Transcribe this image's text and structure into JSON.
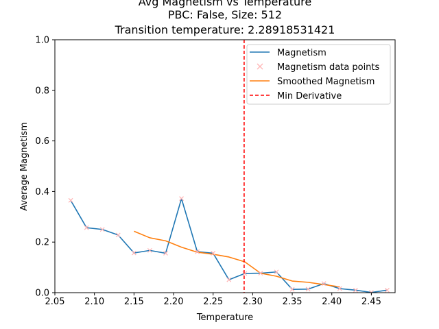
{
  "chart_data": {
    "type": "line",
    "title_lines": [
      "Avg Magnetism vs Temperature",
      "PBC: False, Size: 512",
      "Transition temperature: 2.28918531421"
    ],
    "xlabel": "Temperature",
    "ylabel": "Average Magnetism",
    "xlim": [
      2.05,
      2.48
    ],
    "ylim": [
      0.0,
      1.0
    ],
    "xticks": [
      2.05,
      2.1,
      2.15,
      2.2,
      2.25,
      2.3,
      2.35,
      2.4,
      2.45
    ],
    "xtick_labels": [
      "2.05",
      "2.10",
      "2.15",
      "2.20",
      "2.25",
      "2.30",
      "2.35",
      "2.40",
      "2.45"
    ],
    "yticks": [
      0.0,
      0.2,
      0.4,
      0.6,
      0.8,
      1.0
    ],
    "ytick_labels": [
      "0.0",
      "0.2",
      "0.4",
      "0.6",
      "0.8",
      "1.0"
    ],
    "series": [
      {
        "name": "Magnetism",
        "kind": "line",
        "color": "#1f77b4",
        "x": [
          2.07,
          2.09,
          2.11,
          2.13,
          2.15,
          2.17,
          2.19,
          2.21,
          2.23,
          2.25,
          2.27,
          2.29,
          2.31,
          2.33,
          2.35,
          2.37,
          2.39,
          2.41,
          2.43,
          2.45,
          2.47
        ],
        "y": [
          0.365,
          0.257,
          0.25,
          0.228,
          0.157,
          0.167,
          0.156,
          0.372,
          0.162,
          0.156,
          0.051,
          0.076,
          0.077,
          0.082,
          0.013,
          0.014,
          0.036,
          0.016,
          0.01,
          0.001,
          0.01
        ]
      },
      {
        "name": "Magnetism data points",
        "kind": "markers",
        "marker": "x",
        "color": "#ffb3b3",
        "x": [
          2.07,
          2.09,
          2.11,
          2.13,
          2.15,
          2.17,
          2.19,
          2.21,
          2.23,
          2.25,
          2.27,
          2.29,
          2.31,
          2.33,
          2.35,
          2.37,
          2.39,
          2.41,
          2.43,
          2.45,
          2.47
        ],
        "y": [
          0.365,
          0.257,
          0.25,
          0.228,
          0.157,
          0.167,
          0.156,
          0.372,
          0.162,
          0.156,
          0.051,
          0.076,
          0.077,
          0.082,
          0.013,
          0.014,
          0.036,
          0.016,
          0.01,
          0.001,
          0.01
        ]
      },
      {
        "name": "Smoothed Magnetism",
        "kind": "line",
        "color": "#ff7f0e",
        "x": [
          2.15,
          2.17,
          2.19,
          2.21,
          2.23,
          2.25,
          2.27,
          2.29,
          2.31,
          2.33,
          2.35,
          2.37,
          2.39,
          2.41
        ],
        "y": [
          0.243,
          0.217,
          0.205,
          0.18,
          0.16,
          0.152,
          0.141,
          0.122,
          0.077,
          0.065,
          0.046,
          0.041,
          0.032,
          0.023
        ]
      },
      {
        "name": "Min Derivative",
        "kind": "vline",
        "color": "#ff0000",
        "x_value": 2.28918531421
      }
    ],
    "legend_position": "upper right",
    "grid": false
  }
}
